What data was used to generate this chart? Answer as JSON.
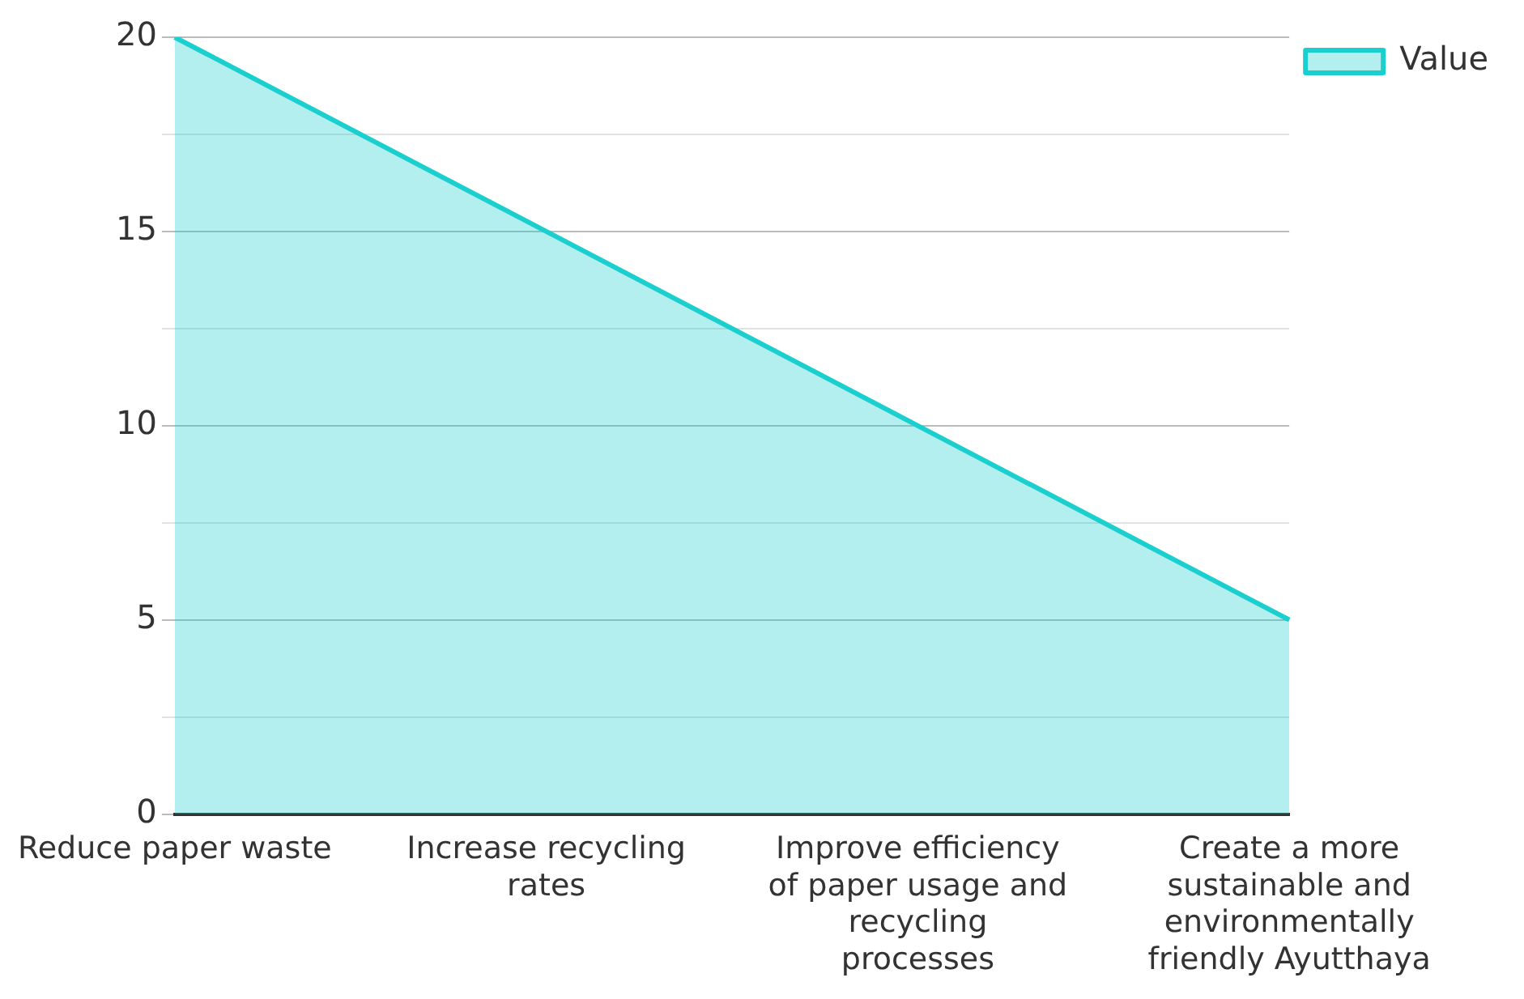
{
  "chart_data": {
    "type": "area",
    "categories": [
      "Reduce paper waste",
      "Increase recycling rates",
      "Improve efficiency of paper usage and recycling processes",
      "Create a more sustainable and environmentally friendly Ayutthaya"
    ],
    "series": [
      {
        "name": "Value",
        "color": "#1ccfcf",
        "values": [
          20,
          15,
          10,
          5
        ]
      }
    ],
    "ylim": [
      0,
      20
    ],
    "yticks": [
      0,
      {
        "value": 2.5,
        "label": null
      },
      5,
      {
        "value": 7.5,
        "label": null
      },
      10,
      {
        "value": 12.5,
        "label": null
      },
      15,
      {
        "value": 17.5,
        "label": null
      },
      20
    ],
    "grid": "y",
    "legend": "top right",
    "marker": "none"
  }
}
